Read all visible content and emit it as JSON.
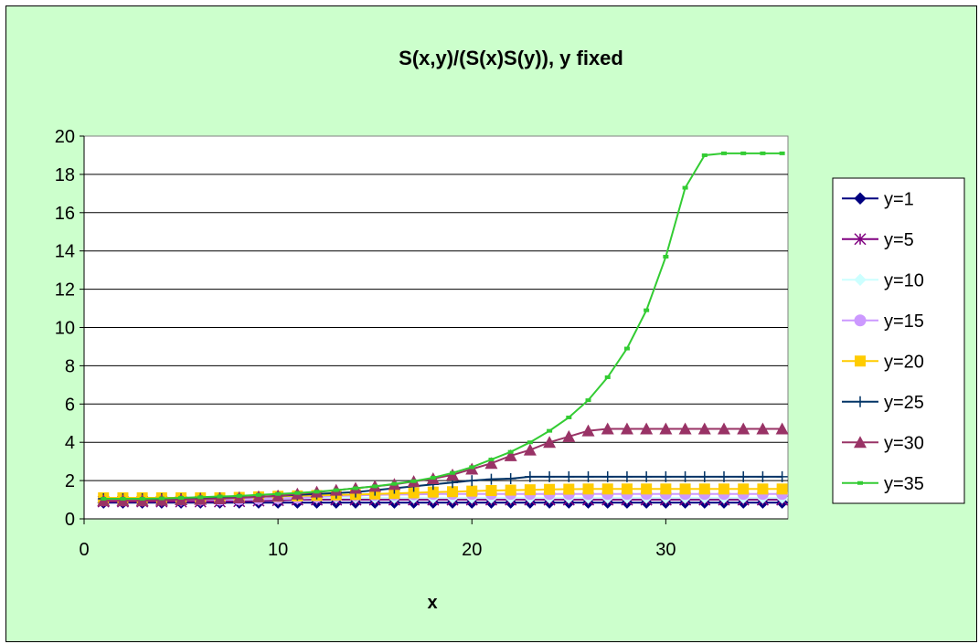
{
  "chart_data": {
    "type": "line",
    "title": "S(x,y)/(S(x)S(y)), y fixed",
    "xlabel": "x",
    "ylabel": "",
    "xlim": [
      0,
      36.3
    ],
    "ylim": [
      0,
      20
    ],
    "x_ticks": [
      "0",
      "10",
      "20",
      "30"
    ],
    "y_ticks": [
      "0",
      "2",
      "4",
      "6",
      "8",
      "10",
      "12",
      "14",
      "16",
      "18",
      "20"
    ],
    "grid": "horizontal",
    "legend_position": "right",
    "x": [
      1,
      2,
      3,
      4,
      5,
      6,
      7,
      8,
      9,
      10,
      11,
      12,
      13,
      14,
      15,
      16,
      17,
      18,
      19,
      20,
      21,
      22,
      23,
      24,
      25,
      26,
      27,
      28,
      29,
      30,
      31,
      32,
      33,
      34,
      35,
      36
    ],
    "series": [
      {
        "name": "y=1",
        "color": "#000080",
        "marker": "diamond",
        "values": [
          0.85,
          0.85,
          0.85,
          0.85,
          0.85,
          0.85,
          0.85,
          0.85,
          0.85,
          0.85,
          0.85,
          0.85,
          0.85,
          0.85,
          0.85,
          0.85,
          0.85,
          0.85,
          0.85,
          0.85,
          0.85,
          0.85,
          0.85,
          0.85,
          0.85,
          0.85,
          0.85,
          0.85,
          0.85,
          0.85,
          0.85,
          0.85,
          0.85,
          0.85,
          0.85,
          0.85
        ]
      },
      {
        "name": "y=5",
        "color": "#800080",
        "marker": "star",
        "values": [
          0.9,
          0.9,
          0.9,
          0.9,
          0.9,
          0.9,
          0.9,
          0.92,
          0.95,
          0.97,
          1.0,
          1.0,
          1.0,
          1.0,
          1.0,
          1.0,
          1.0,
          1.0,
          1.0,
          1.0,
          1.0,
          1.0,
          1.0,
          1.0,
          1.0,
          1.0,
          1.0,
          1.0,
          1.0,
          1.0,
          1.0,
          1.0,
          1.0,
          1.0,
          1.0,
          1.0
        ]
      },
      {
        "name": "y=10",
        "color": "#ccffff",
        "marker": "diamond",
        "values": [
          1.0,
          1.0,
          1.0,
          1.0,
          1.0,
          1.0,
          1.0,
          1.0,
          1.02,
          1.05,
          1.07,
          1.1,
          1.1,
          1.1,
          1.1,
          1.1,
          1.1,
          1.1,
          1.1,
          1.1,
          1.1,
          1.1,
          1.1,
          1.1,
          1.1,
          1.1,
          1.1,
          1.1,
          1.1,
          1.1,
          1.1,
          1.1,
          1.1,
          1.1,
          1.1,
          1.1
        ]
      },
      {
        "name": "y=15",
        "color": "#cc99ff",
        "marker": "circle",
        "values": [
          1.0,
          1.0,
          1.0,
          1.0,
          1.0,
          1.0,
          1.0,
          1.02,
          1.05,
          1.08,
          1.1,
          1.15,
          1.2,
          1.22,
          1.25,
          1.27,
          1.28,
          1.3,
          1.3,
          1.3,
          1.3,
          1.3,
          1.3,
          1.3,
          1.3,
          1.3,
          1.3,
          1.3,
          1.3,
          1.3,
          1.3,
          1.3,
          1.3,
          1.3,
          1.3,
          1.3
        ]
      },
      {
        "name": "y=20",
        "color": "#ffcc00",
        "marker": "square",
        "values": [
          1.1,
          1.1,
          1.1,
          1.1,
          1.1,
          1.1,
          1.1,
          1.12,
          1.15,
          1.18,
          1.2,
          1.22,
          1.25,
          1.27,
          1.3,
          1.33,
          1.36,
          1.4,
          1.42,
          1.45,
          1.48,
          1.5,
          1.52,
          1.54,
          1.55,
          1.56,
          1.56,
          1.56,
          1.56,
          1.56,
          1.56,
          1.56,
          1.56,
          1.56,
          1.56,
          1.56
        ]
      },
      {
        "name": "y=25",
        "color": "#003366",
        "marker": "plus",
        "values": [
          1.05,
          1.05,
          1.05,
          1.05,
          1.05,
          1.07,
          1.1,
          1.12,
          1.15,
          1.2,
          1.25,
          1.3,
          1.35,
          1.4,
          1.5,
          1.6,
          1.7,
          1.8,
          1.9,
          2.0,
          2.07,
          2.1,
          2.2,
          2.2,
          2.2,
          2.2,
          2.2,
          2.2,
          2.2,
          2.2,
          2.2,
          2.2,
          2.2,
          2.2,
          2.2,
          2.2
        ]
      },
      {
        "name": "y=30",
        "color": "#993366",
        "marker": "triangle",
        "values": [
          0.95,
          0.95,
          0.95,
          0.97,
          1.0,
          1.02,
          1.05,
          1.1,
          1.15,
          1.2,
          1.3,
          1.4,
          1.5,
          1.6,
          1.7,
          1.8,
          1.95,
          2.1,
          2.3,
          2.6,
          2.9,
          3.3,
          3.6,
          4.0,
          4.3,
          4.6,
          4.7,
          4.7,
          4.7,
          4.7,
          4.7,
          4.7,
          4.7,
          4.7,
          4.7,
          4.7
        ]
      },
      {
        "name": "y=35",
        "color": "#33cc33",
        "marker": "dash",
        "values": [
          1.05,
          1.05,
          1.05,
          1.07,
          1.1,
          1.13,
          1.17,
          1.2,
          1.25,
          1.3,
          1.35,
          1.42,
          1.5,
          1.6,
          1.7,
          1.83,
          1.97,
          2.15,
          2.4,
          2.7,
          3.1,
          3.5,
          4.0,
          4.6,
          5.3,
          6.2,
          7.4,
          8.9,
          10.9,
          13.7,
          17.3,
          19.0,
          19.1,
          19.1,
          19.1,
          19.1
        ]
      }
    ]
  }
}
